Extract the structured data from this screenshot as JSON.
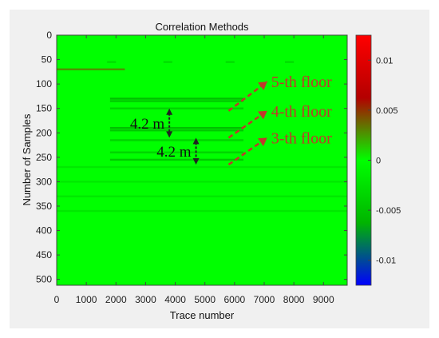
{
  "chart_data": {
    "type": "heatmap",
    "title": "Correlation Methods",
    "xlabel": "Trace number",
    "ylabel": "Number of Samples",
    "xlim": [
      0,
      9800
    ],
    "ylim": [
      0,
      512
    ],
    "y_reversed": true,
    "x_ticks": [
      0,
      1000,
      2000,
      3000,
      4000,
      5000,
      6000,
      7000,
      8000,
      9000
    ],
    "y_ticks": [
      0,
      50,
      100,
      150,
      200,
      250,
      300,
      350,
      400,
      450,
      500
    ],
    "colorbar": {
      "range": [
        -0.0125,
        0.0125
      ],
      "ticks": [
        0.01,
        0.005,
        0,
        -0.005,
        -0.01
      ],
      "tick_labels": [
        "0.01",
        "0.005",
        "0",
        "-0.005",
        "-0.01"
      ],
      "colors": [
        "#0000ff",
        "#00b400",
        "#00ff00",
        "#b40000",
        "#ff0000"
      ]
    },
    "background_value": 0,
    "reflections": [
      {
        "sample": 55,
        "x_start": 1700,
        "x_end": 2000,
        "value": -0.003
      },
      {
        "sample": 55,
        "x_start": 3600,
        "x_end": 3900,
        "value": -0.003
      },
      {
        "sample": 55,
        "x_start": 5700,
        "x_end": 6000,
        "value": -0.003
      },
      {
        "sample": 55,
        "x_start": 7700,
        "x_end": 8000,
        "value": -0.003
      },
      {
        "sample": 70,
        "x_start": 0,
        "x_end": 2300,
        "value": 0.003
      },
      {
        "sample": 130,
        "x_start": 1800,
        "x_end": 6300,
        "value": -0.006
      },
      {
        "sample": 135,
        "x_start": 1800,
        "x_end": 6300,
        "value": -0.005
      },
      {
        "sample": 150,
        "x_start": 1800,
        "x_end": 6300,
        "value": -0.004
      },
      {
        "sample": 190,
        "x_start": 1800,
        "x_end": 6300,
        "value": -0.006
      },
      {
        "sample": 195,
        "x_start": 1800,
        "x_end": 6300,
        "value": -0.005
      },
      {
        "sample": 215,
        "x_start": 1800,
        "x_end": 6300,
        "value": -0.004
      },
      {
        "sample": 240,
        "x_start": 1800,
        "x_end": 6300,
        "value": -0.004
      },
      {
        "sample": 255,
        "x_start": 1800,
        "x_end": 6300,
        "value": -0.005
      },
      {
        "sample": 270,
        "x_start": 0,
        "x_end": 9800,
        "value": -0.002
      },
      {
        "sample": 300,
        "x_start": 0,
        "x_end": 9800,
        "value": -0.002
      },
      {
        "sample": 330,
        "x_start": 0,
        "x_end": 9800,
        "value": -0.002
      },
      {
        "sample": 360,
        "x_start": 0,
        "x_end": 9800,
        "value": -0.002
      }
    ],
    "annotations": [
      {
        "text": "5-th floor",
        "arrow_from": [
          5800,
          155
        ],
        "arrow_to": [
          7100,
          95
        ]
      },
      {
        "text": "4-th floor",
        "arrow_from": [
          5800,
          210
        ],
        "arrow_to": [
          7100,
          155
        ]
      },
      {
        "text": "3-th floor",
        "arrow_from": [
          5800,
          265
        ],
        "arrow_to": [
          7100,
          210
        ]
      },
      {
        "text": "4.2 m",
        "span_samples": [
          150,
          210
        ],
        "at_x": 3800
      },
      {
        "text": "4.2 m",
        "span_samples": [
          210,
          265
        ],
        "at_x": 4700
      }
    ],
    "annotation_color": "#c0392b",
    "arrow_color": "#222222"
  }
}
